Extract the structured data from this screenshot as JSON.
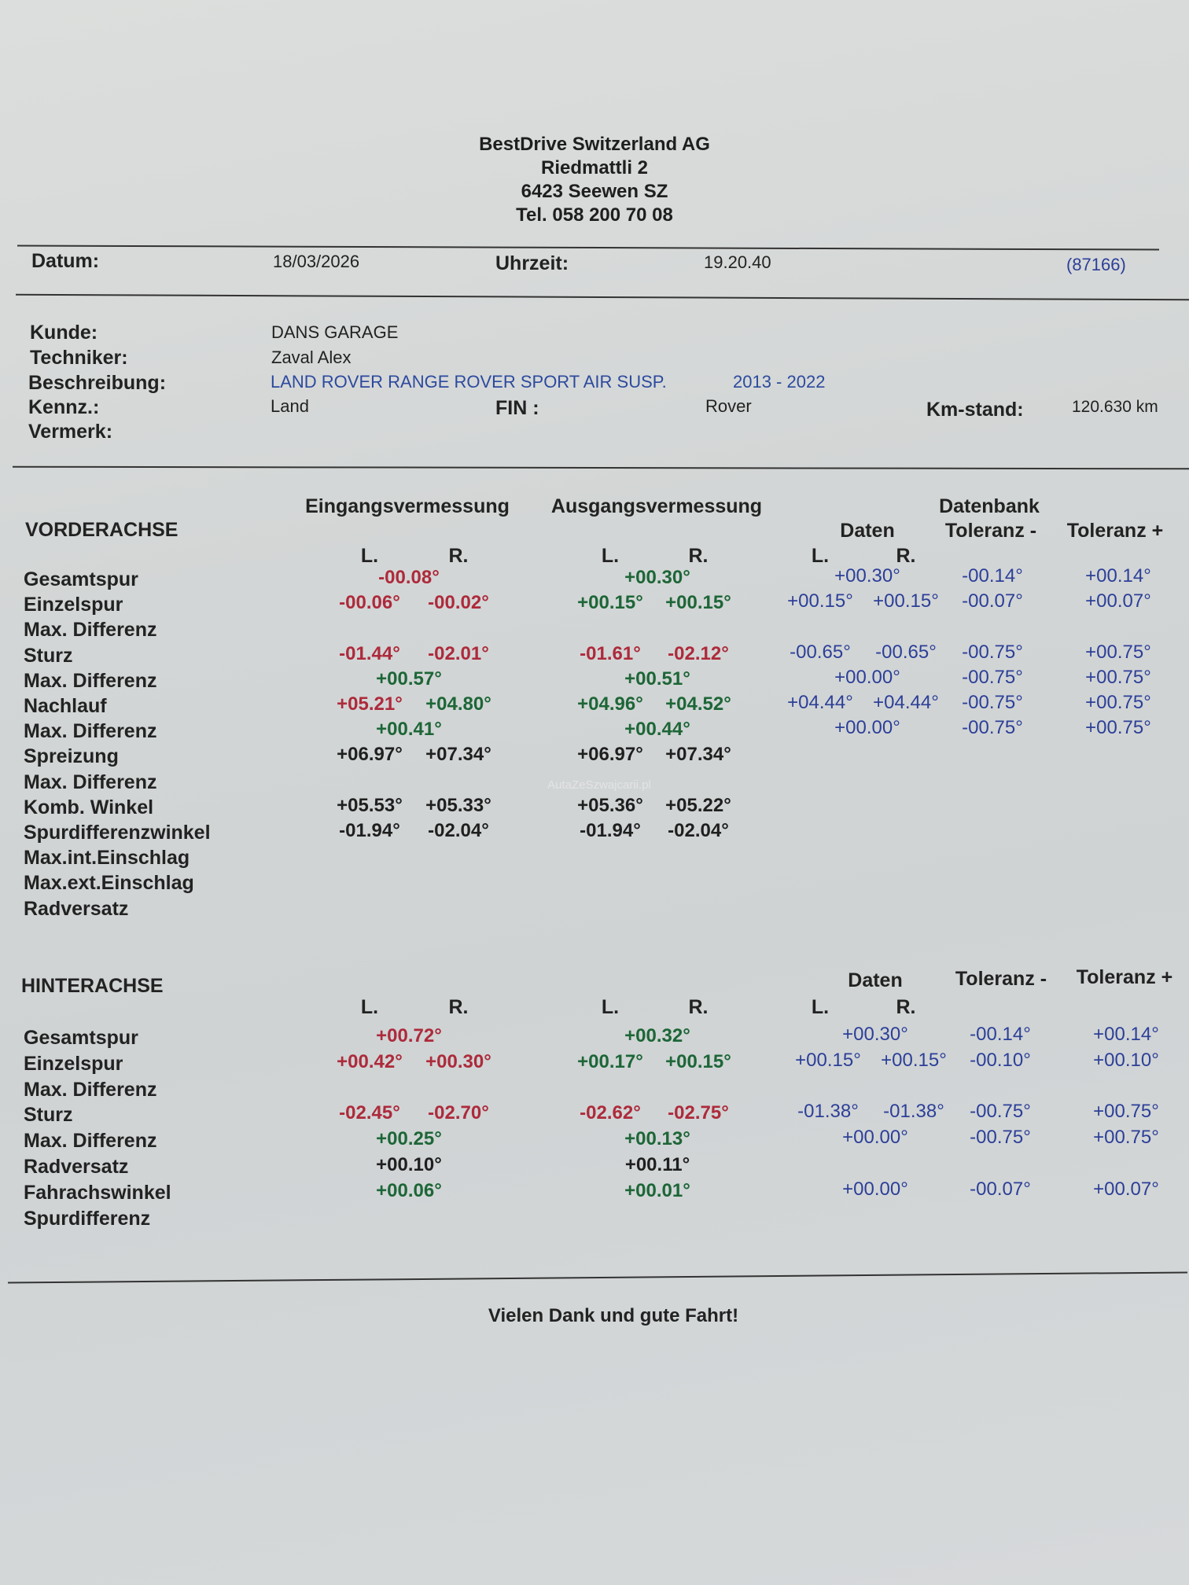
{
  "company": {
    "name": "BestDrive Switzerland AG",
    "street": "Riedmattli 2",
    "city": "6423 Seewen SZ",
    "phone": "Tel. 058 200 70 08"
  },
  "meta": {
    "datum_label": "Datum:",
    "datum": "18/03/2026",
    "uhrzeit_label": "Uhrzeit:",
    "uhrzeit": "19.20.40",
    "ref": "(87166)"
  },
  "customer": {
    "kunde_label": "Kunde:",
    "kunde": "DANS GARAGE",
    "techniker_label": "Techniker:",
    "techniker": "Zaval Alex",
    "beschreibung_label": "Beschreibung:",
    "beschreibung": "LAND ROVER RANGE ROVER SPORT AIR SUSP.",
    "years": "2013 - 2022",
    "kennz_label": "Kennz.:",
    "kennz": "Land",
    "fin_label": "FIN :",
    "fin": "Rover",
    "km_label": "Km-stand:",
    "km": "120.630 km",
    "vermerk_label": "Vermerk:"
  },
  "colors": {
    "red": "#ad2a3b",
    "green": "#1d6637",
    "black": "#1f1f1f",
    "blue": "#2c3f98"
  },
  "headings": {
    "eingang": "Eingangsvermessung",
    "ausgang": "Ausgangsvermessung",
    "datenbank": "Datenbank",
    "daten": "Daten",
    "tol_minus": "Toleranz -",
    "tol_plus": "Toleranz +",
    "left": "L.",
    "right": "R."
  },
  "front": {
    "title": "VORDERACHSE",
    "rows": [
      {
        "label": "Gesamtspur",
        "ein_c": [
          "-00.08°",
          "red"
        ],
        "aus_c": [
          "+00.30°",
          "green"
        ],
        "db_c": "+00.30°",
        "tm": "-00.14°",
        "tp": "+00.14°"
      },
      {
        "label": "Einzelspur",
        "ein_l": [
          "-00.06°",
          "red"
        ],
        "ein_r": [
          "-00.02°",
          "red"
        ],
        "aus_l": [
          "+00.15°",
          "green"
        ],
        "aus_r": [
          "+00.15°",
          "green"
        ],
        "db_l": "+00.15°",
        "db_r": "+00.15°",
        "tm": "-00.07°",
        "tp": "+00.07°"
      },
      {
        "label": "Max. Differenz"
      },
      {
        "label": "Sturz",
        "ein_l": [
          "-01.44°",
          "red"
        ],
        "ein_r": [
          "-02.01°",
          "red"
        ],
        "aus_l": [
          "-01.61°",
          "red"
        ],
        "aus_r": [
          "-02.12°",
          "red"
        ],
        "db_l": "-00.65°",
        "db_r": "-00.65°",
        "tm": "-00.75°",
        "tp": "+00.75°"
      },
      {
        "label": "Max. Differenz",
        "ein_c": [
          "+00.57°",
          "green"
        ],
        "aus_c": [
          "+00.51°",
          "green"
        ],
        "db_c": "+00.00°",
        "tm": "-00.75°",
        "tp": "+00.75°"
      },
      {
        "label": "Nachlauf",
        "ein_l": [
          "+05.21°",
          "red"
        ],
        "ein_r": [
          "+04.80°",
          "green"
        ],
        "aus_l": [
          "+04.96°",
          "green"
        ],
        "aus_r": [
          "+04.52°",
          "green"
        ],
        "db_l": "+04.44°",
        "db_r": "+04.44°",
        "tm": "-00.75°",
        "tp": "+00.75°"
      },
      {
        "label": "Max. Differenz",
        "ein_c": [
          "+00.41°",
          "green"
        ],
        "aus_c": [
          "+00.44°",
          "green"
        ],
        "db_c": "+00.00°",
        "tm": "-00.75°",
        "tp": "+00.75°"
      },
      {
        "label": "Spreizung",
        "ein_l": [
          "+06.97°",
          "black"
        ],
        "ein_r": [
          "+07.34°",
          "black"
        ],
        "aus_l": [
          "+06.97°",
          "black"
        ],
        "aus_r": [
          "+07.34°",
          "black"
        ]
      },
      {
        "label": "Max. Differenz"
      },
      {
        "label": "Komb. Winkel",
        "ein_l": [
          "+05.53°",
          "black"
        ],
        "ein_r": [
          "+05.33°",
          "black"
        ],
        "aus_l": [
          "+05.36°",
          "black"
        ],
        "aus_r": [
          "+05.22°",
          "black"
        ]
      },
      {
        "label": "Spurdifferenzwinkel",
        "ein_l": [
          "-01.94°",
          "black"
        ],
        "ein_r": [
          "-02.04°",
          "black"
        ],
        "aus_l": [
          "-01.94°",
          "black"
        ],
        "aus_r": [
          "-02.04°",
          "black"
        ]
      },
      {
        "label": "Max.int.Einschlag"
      },
      {
        "label": "Max.ext.Einschlag"
      },
      {
        "label": "Radversatz"
      }
    ]
  },
  "rear": {
    "title": "HINTERACHSE",
    "rows": [
      {
        "label": "Gesamtspur",
        "ein_c": [
          "+00.72°",
          "red"
        ],
        "aus_c": [
          "+00.32°",
          "green"
        ],
        "db_c": "+00.30°",
        "tm": "-00.14°",
        "tp": "+00.14°"
      },
      {
        "label": "Einzelspur",
        "ein_l": [
          "+00.42°",
          "red"
        ],
        "ein_r": [
          "+00.30°",
          "red"
        ],
        "aus_l": [
          "+00.17°",
          "green"
        ],
        "aus_r": [
          "+00.15°",
          "green"
        ],
        "db_l": "+00.15°",
        "db_r": "+00.15°",
        "tm": "-00.10°",
        "tp": "+00.10°"
      },
      {
        "label": "Max. Differenz"
      },
      {
        "label": "Sturz",
        "ein_l": [
          "-02.45°",
          "red"
        ],
        "ein_r": [
          "-02.70°",
          "red"
        ],
        "aus_l": [
          "-02.62°",
          "red"
        ],
        "aus_r": [
          "-02.75°",
          "red"
        ],
        "db_l": "-01.38°",
        "db_r": "-01.38°",
        "tm": "-00.75°",
        "tp": "+00.75°"
      },
      {
        "label": "Max. Differenz",
        "ein_c": [
          "+00.25°",
          "green"
        ],
        "aus_c": [
          "+00.13°",
          "green"
        ],
        "db_c": "+00.00°",
        "tm": "-00.75°",
        "tp": "+00.75°"
      },
      {
        "label": "Radversatz",
        "ein_c": [
          "+00.10°",
          "black"
        ],
        "aus_c": [
          "+00.11°",
          "black"
        ]
      },
      {
        "label": "Fahrachswinkel",
        "ein_c": [
          "+00.06°",
          "green"
        ],
        "aus_c": [
          "+00.01°",
          "green"
        ],
        "db_c": "+00.00°",
        "tm": "-00.07°",
        "tp": "+00.07°"
      },
      {
        "label": "Spurdifferenz"
      }
    ]
  },
  "watermark": "AutaZeSzwajcarii.pl",
  "footer": "Vielen Dank und gute Fahrt!"
}
